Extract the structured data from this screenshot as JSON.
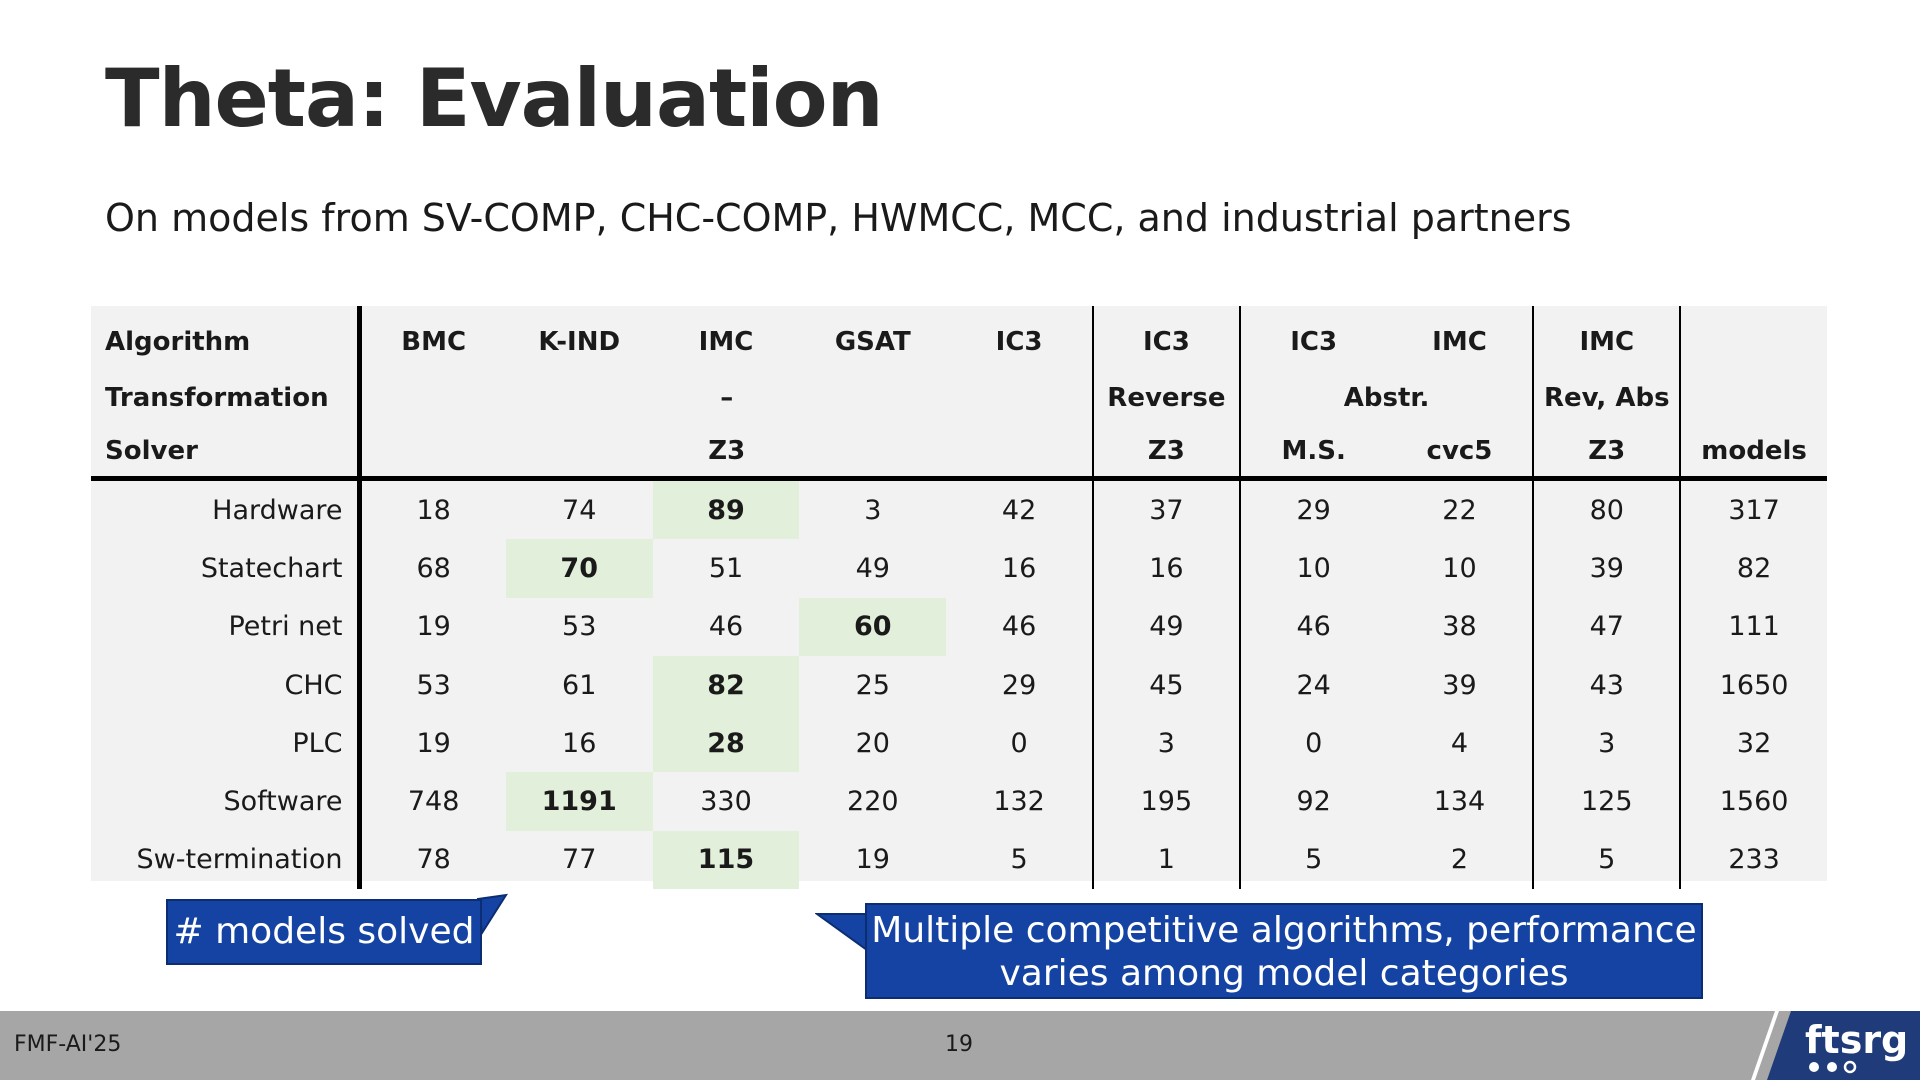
{
  "slide": {
    "title": "Theta: Evaluation",
    "subtitle": "On models from SV-COMP, CHC-COMP, HWMCC, MCC, and industrial partners"
  },
  "table": {
    "row_labels": {
      "algorithm": "Algorithm",
      "transformation": "Transformation",
      "solver": "Solver"
    },
    "algorithm": [
      "BMC",
      "K-IND",
      "IMC",
      "GSAT",
      "IC3",
      "IC3",
      "IC3",
      "IMC",
      "IMC",
      ""
    ],
    "transformation": {
      "base": "–",
      "reverse": "Reverse",
      "abstr": "Abstr.",
      "rev_abs": "Rev, Abs"
    },
    "solver": {
      "base": "Z3",
      "reverse": "Z3",
      "ms": "M.S.",
      "cvc5": "cvc5",
      "rev_abs": "Z3",
      "models": "models"
    },
    "rows": [
      {
        "category": "Hardware",
        "values": [
          "18",
          "74",
          "89",
          "3",
          "42",
          "37",
          "29",
          "22",
          "80",
          "317"
        ],
        "best": 2
      },
      {
        "category": "Statechart",
        "values": [
          "68",
          "70",
          "51",
          "49",
          "16",
          "16",
          "10",
          "10",
          "39",
          "82"
        ],
        "best": 1
      },
      {
        "category": "Petri net",
        "values": [
          "19",
          "53",
          "46",
          "60",
          "46",
          "49",
          "46",
          "38",
          "47",
          "111"
        ],
        "best": 3
      },
      {
        "category": "CHC",
        "values": [
          "53",
          "61",
          "82",
          "25",
          "29",
          "45",
          "24",
          "39",
          "43",
          "1650"
        ],
        "best": 2
      },
      {
        "category": "PLC",
        "values": [
          "19",
          "16",
          "28",
          "20",
          "0",
          "3",
          "0",
          "4",
          "3",
          "32"
        ],
        "best": 2
      },
      {
        "category": "Software",
        "values": [
          "748",
          "1191",
          "330",
          "220",
          "132",
          "195",
          "92",
          "134",
          "125",
          "1560"
        ],
        "best": 1
      },
      {
        "category": "Sw-termination",
        "values": [
          "78",
          "77",
          "115",
          "19",
          "5",
          "1",
          "5",
          "2",
          "5",
          "233"
        ],
        "best": 2
      }
    ]
  },
  "callouts": {
    "models_solved": "# models solved",
    "note_line1": "Multiple competitive algorithms, performance",
    "note_line2": "varies among model categories"
  },
  "footer": {
    "event": "FMF-AI'25",
    "page": "19",
    "logo_text": "ftsrg"
  },
  "colors": {
    "callout_bg": "#1443a3",
    "best_cell_bg": "#e2efda",
    "table_bg": "#f2f2f2",
    "footer_bg": "#a6a6a6",
    "logo_bg": "#1f3b7a"
  }
}
